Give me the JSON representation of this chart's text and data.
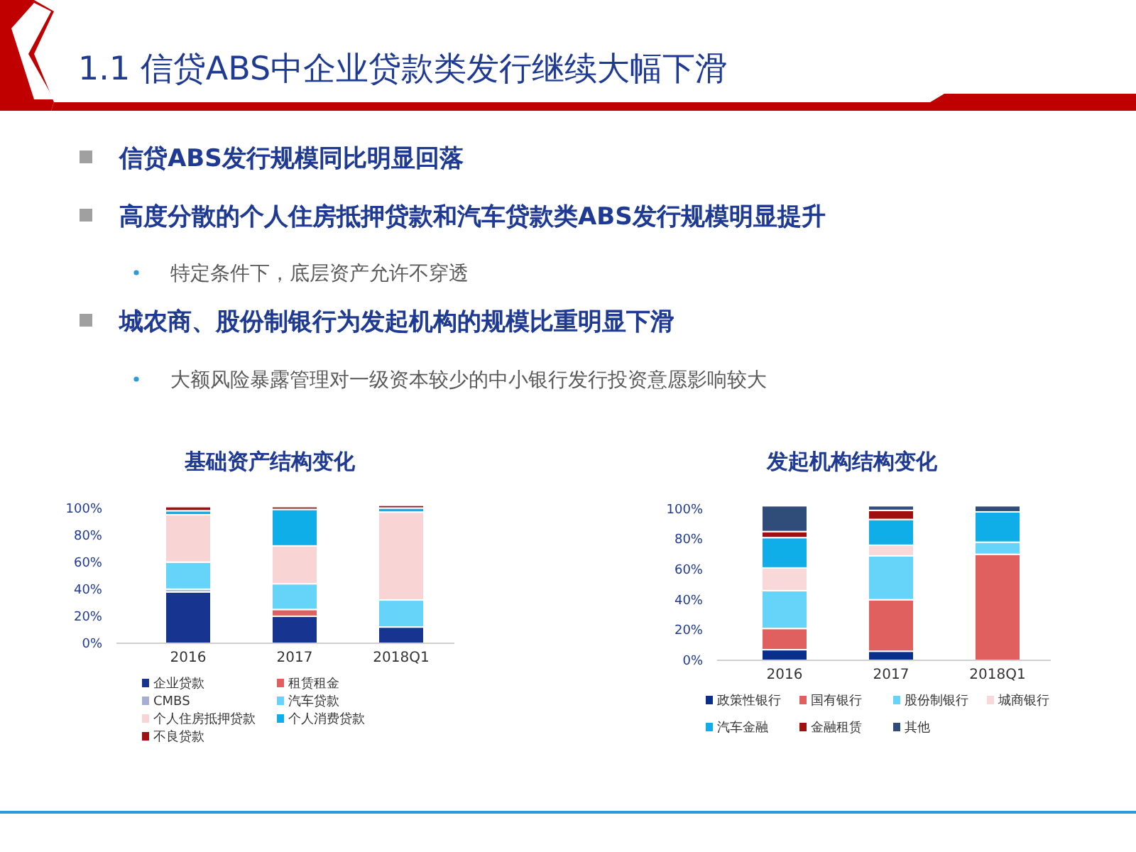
{
  "chart_data": [
    {
      "type": "other",
      "title": "1.1 信贷ABS中企业贷款类发行继续大幅下滑",
      "annotations": [
        "信贷ABS发行规模同比明显回落",
        "高度分散的个人住房抵押贷款和汽车贷款类ABS发行规模明显提升",
        "特定条件下，底层资产允许不穿透",
        "城农商、股份制银行为发起机构的规模比重明显下滑",
        "大额风险暴露管理对一级资本较少的中小银行发行投资意愿影响较大"
      ]
    },
    {
      "type": "bar",
      "stacked": true,
      "title": "基础资产结构变化",
      "categories": [
        "2016",
        "2017",
        "2018Q1"
      ],
      "ylim": [
        0,
        105
      ],
      "yticks": [
        {
          "value": 0,
          "label": "0%"
        },
        {
          "value": 20,
          "label": "20%"
        },
        {
          "value": 40,
          "label": "40%"
        },
        {
          "value": 60,
          "label": "60%"
        },
        {
          "value": 80,
          "label": "80%"
        },
        {
          "value": 100,
          "label": "100%"
        }
      ],
      "legend": "bottom",
      "grid": false,
      "series": [
        {
          "name": "企业贷款",
          "color": "#173590",
          "values": [
            38,
            20,
            12
          ]
        },
        {
          "name": "租赁租金",
          "color": "#e06060",
          "values": [
            null,
            5,
            null
          ]
        },
        {
          "name": "CMBS",
          "color": "#a6aed6",
          "values": [
            2,
            null,
            null
          ]
        },
        {
          "name": "汽车贷款",
          "color": "#66d4f8",
          "values": [
            20,
            19,
            20
          ]
        },
        {
          "name": "个人住房抵押贷款",
          "color": "#f8d4d4",
          "values": [
            35,
            28,
            65
          ]
        },
        {
          "name": "个人消费贷款",
          "color": "#10aee8",
          "values": [
            3,
            27,
            3
          ]
        },
        {
          "name": "不良贷款",
          "color": "#a01010",
          "values": [
            3,
            2,
            2
          ]
        }
      ]
    },
    {
      "type": "bar",
      "stacked": true,
      "title": "发起机构结构变化",
      "categories": [
        "2016",
        "2017",
        "2018Q1"
      ],
      "ylim": [
        0,
        105
      ],
      "yticks": [
        {
          "value": 0,
          "label": "0%"
        },
        {
          "value": 20,
          "label": "20%"
        },
        {
          "value": 40,
          "label": "40%"
        },
        {
          "value": 60,
          "label": "60%"
        },
        {
          "value": 80,
          "label": "80%"
        },
        {
          "value": 100,
          "label": "100%"
        }
      ],
      "legend": "bottom",
      "grid": false,
      "series": [
        {
          "name": "政策性银行",
          "color": "#0a2f8a",
          "values": [
            7,
            6,
            null
          ]
        },
        {
          "name": "国有银行",
          "color": "#e06060",
          "values": [
            14,
            34,
            70
          ]
        },
        {
          "name": "股份制银行",
          "color": "#66d4f8",
          "values": [
            25,
            29,
            8
          ]
        },
        {
          "name": "城商银行",
          "color": "#f8d8d8",
          "values": [
            15,
            7,
            null
          ]
        },
        {
          "name": "汽车金融",
          "color": "#10aee8",
          "values": [
            20,
            17,
            20
          ]
        },
        {
          "name": "金融租赁",
          "color": "#a01010",
          "values": [
            4,
            6,
            null
          ]
        },
        {
          "name": "其他",
          "color": "#2f4d78",
          "values": [
            17,
            3,
            4
          ]
        }
      ]
    }
  ]
}
